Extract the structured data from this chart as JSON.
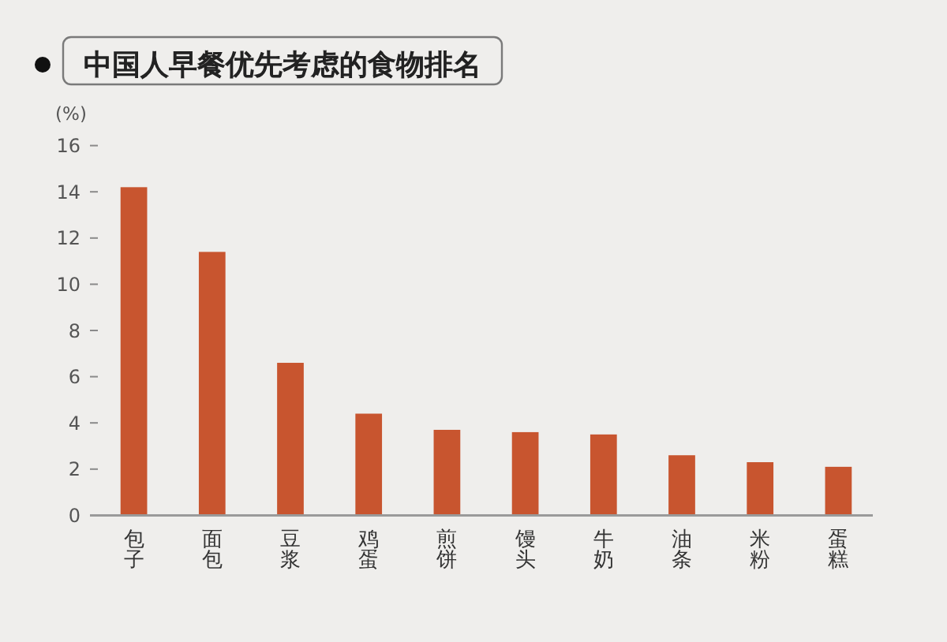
{
  "chart_data": {
    "type": "bar",
    "title": "中国人早餐优先考虑的食物排名",
    "ylabel": "(%)",
    "categories": [
      "包子",
      "面包",
      "豆浆",
      "鸡蛋",
      "煎饼",
      "馒头",
      "牛奶",
      "油条",
      "米粉",
      "蛋糕"
    ],
    "values": [
      14.2,
      11.4,
      6.6,
      4.4,
      3.7,
      3.6,
      3.5,
      2.6,
      2.3,
      2.1
    ],
    "color": "#c8552f",
    "ylim": [
      0,
      16
    ],
    "yticks": [
      0,
      2,
      4,
      6,
      8,
      10,
      12,
      14,
      16
    ]
  }
}
